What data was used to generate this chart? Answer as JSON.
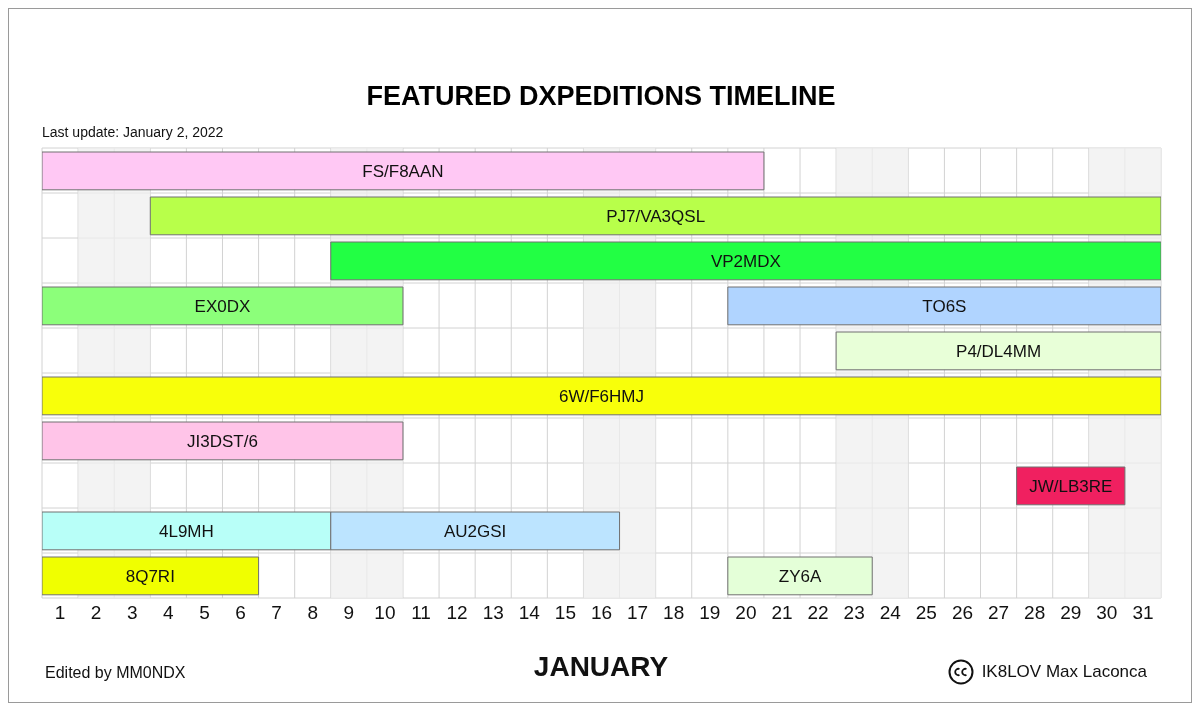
{
  "chart_data": {
    "type": "bar",
    "orientation": "horizontal",
    "title": "FEATURED DXPEDITIONS TIMELINE",
    "subtitle": "Last update: January 2, 2022",
    "xlabel": "JANUARY",
    "annotations": [
      "Edited by MM0NDX",
      "IK8LOV Max Laconca"
    ],
    "categories": [
      null,
      null,
      null,
      null,
      null,
      null,
      null,
      null,
      null,
      null
    ],
    "series": [
      {
        "name": "FS/F8AAN",
        "color": "#ffc8f4",
        "base": [
          0.5,
          null,
          null,
          null,
          null,
          null,
          null,
          null,
          null,
          null
        ],
        "values": [
          20,
          null,
          null,
          null,
          null,
          null,
          null,
          null,
          null,
          null
        ]
      },
      {
        "name": "PJ7/VA3QSL",
        "color": "#b8ff4a",
        "base": [
          null,
          3.5,
          null,
          null,
          null,
          null,
          null,
          null,
          null,
          null
        ],
        "values": [
          null,
          28,
          null,
          null,
          null,
          null,
          null,
          null,
          null,
          null
        ]
      },
      {
        "name": "VP2MDX",
        "color": "#22ff44",
        "base": [
          null,
          null,
          8.5,
          null,
          null,
          null,
          null,
          null,
          null,
          null
        ],
        "values": [
          null,
          null,
          23,
          null,
          null,
          null,
          null,
          null,
          null,
          null
        ]
      },
      {
        "name": "EX0DX",
        "color": "#8cff7a",
        "base": [
          null,
          null,
          null,
          0.5,
          null,
          null,
          null,
          null,
          null,
          null
        ],
        "values": [
          null,
          null,
          null,
          10,
          null,
          null,
          null,
          null,
          null,
          null
        ]
      },
      {
        "name": "TO6S",
        "color": "#b0d4ff",
        "base": [
          null,
          null,
          null,
          19.5,
          null,
          null,
          null,
          null,
          null,
          null
        ],
        "values": [
          null,
          null,
          null,
          12,
          null,
          null,
          null,
          null,
          null,
          null
        ]
      },
      {
        "name": "P4/DL4MM",
        "color": "#e8ffd8",
        "base": [
          null,
          null,
          null,
          null,
          22.5,
          null,
          null,
          null,
          null,
          null
        ],
        "values": [
          null,
          null,
          null,
          null,
          9,
          null,
          null,
          null,
          null,
          null
        ]
      },
      {
        "name": "6W/F6HMJ",
        "color": "#f8ff0a",
        "base": [
          null,
          null,
          null,
          null,
          null,
          0.5,
          null,
          null,
          null,
          null
        ],
        "values": [
          null,
          null,
          null,
          null,
          null,
          31,
          null,
          null,
          null,
          null
        ]
      },
      {
        "name": "JI3DST/6",
        "color": "#ffc4e8",
        "base": [
          null,
          null,
          null,
          null,
          null,
          null,
          0.5,
          null,
          null,
          null
        ],
        "values": [
          null,
          null,
          null,
          null,
          null,
          null,
          10,
          null,
          null,
          null
        ]
      },
      {
        "name": "JW/LB3RE",
        "color": "#f02060",
        "base": [
          null,
          null,
          null,
          null,
          null,
          null,
          null,
          27.5,
          null,
          null
        ],
        "values": [
          null,
          null,
          null,
          null,
          null,
          null,
          null,
          3,
          null,
          null
        ]
      },
      {
        "name": "4L9MH",
        "color": "#b8fff8",
        "base": [
          null,
          null,
          null,
          null,
          null,
          null,
          null,
          null,
          0.5,
          null
        ],
        "values": [
          null,
          null,
          null,
          null,
          null,
          null,
          null,
          null,
          8,
          null
        ]
      },
      {
        "name": "AU2GSI",
        "color": "#bce4ff",
        "base": [
          null,
          null,
          null,
          null,
          null,
          null,
          null,
          null,
          8.5,
          null
        ],
        "values": [
          null,
          null,
          null,
          null,
          null,
          null,
          null,
          null,
          8,
          null
        ]
      },
      {
        "name": "8Q7RI",
        "color": "#f0ff00",
        "base": [
          null,
          null,
          null,
          null,
          null,
          null,
          null,
          null,
          null,
          0.5
        ],
        "values": [
          null,
          null,
          null,
          null,
          null,
          null,
          null,
          null,
          null,
          6
        ]
      },
      {
        "name": "ZY6A",
        "color": "#e4ffd8",
        "base": [
          null,
          null,
          null,
          null,
          null,
          null,
          null,
          null,
          null,
          19.5
        ],
        "values": [
          null,
          null,
          null,
          null,
          null,
          null,
          null,
          null,
          null,
          4
        ]
      }
    ],
    "xlim": [
      0.5,
      31.5
    ],
    "xticks": [
      {
        "value": 0.5,
        "label": null
      },
      1,
      {
        "value": 1.5,
        "label": null
      },
      2,
      {
        "value": 2.5,
        "label": null
      },
      3,
      {
        "value": 3.5,
        "label": null
      },
      4,
      {
        "value": 4.5,
        "label": null
      },
      5,
      {
        "value": 5.5,
        "label": null
      },
      6,
      {
        "value": 6.5,
        "label": null
      },
      7,
      {
        "value": 7.5,
        "label": null
      },
      8,
      {
        "value": 8.5,
        "label": null
      },
      9,
      {
        "value": 9.5,
        "label": null
      },
      10,
      {
        "value": 10.5,
        "label": null
      },
      11,
      {
        "value": 11.5,
        "label": null
      },
      12,
      {
        "value": 12.5,
        "label": null
      },
      13,
      {
        "value": 13.5,
        "label": null
      },
      14,
      {
        "value": 14.5,
        "label": null
      },
      15,
      {
        "value": 15.5,
        "label": null
      },
      16,
      {
        "value": 16.5,
        "label": null
      },
      17,
      {
        "value": 17.5,
        "label": null
      },
      18,
      {
        "value": 18.5,
        "label": null
      },
      19,
      {
        "value": 19.5,
        "label": null
      },
      20,
      {
        "value": 20.5,
        "label": null
      },
      21,
      {
        "value": 21.5,
        "label": null
      },
      22,
      {
        "value": 22.5,
        "label": null
      },
      23,
      {
        "value": 23.5,
        "label": null
      },
      24,
      {
        "value": 24.5,
        "label": null
      },
      25,
      {
        "value": 25.5,
        "label": null
      },
      26,
      {
        "value": 26.5,
        "label": null
      },
      27,
      {
        "value": 27.5,
        "label": null
      },
      28,
      {
        "value": 28.5,
        "label": null
      },
      29,
      {
        "value": 29.5,
        "label": null
      },
      30,
      {
        "value": 30.5,
        "label": null
      },
      31,
      {
        "value": 31.5,
        "label": null
      }
    ],
    "bands": [
      {
        "axis": "x",
        "from": 1.5,
        "to": 3.5,
        "color": "#efefef"
      },
      {
        "axis": "x",
        "from": 8.5,
        "to": 10.5,
        "color": "#efefef"
      },
      {
        "axis": "x",
        "from": 15.5,
        "to": 17.5,
        "color": "#efefef"
      },
      {
        "axis": "x",
        "from": 22.5,
        "to": 24.5,
        "color": "#efefef"
      },
      {
        "axis": "x",
        "from": 29.5,
        "to": 31.5,
        "color": "#efefef"
      }
    ],
    "grid": true,
    "tick_labels": "x"
  }
}
